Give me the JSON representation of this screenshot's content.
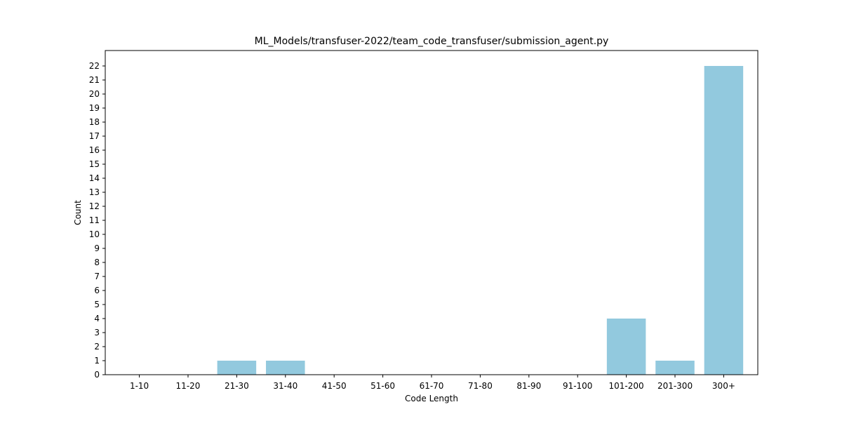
{
  "chart_data": {
    "type": "bar",
    "title": "ML_Models/transfuser-2022/team_code_transfuser/submission_agent.py",
    "xlabel": "Code Length",
    "ylabel": "Count",
    "categories": [
      "1-10",
      "11-20",
      "21-30",
      "31-40",
      "41-50",
      "51-60",
      "61-70",
      "71-80",
      "81-90",
      "91-100",
      "101-200",
      "201-300",
      "300+"
    ],
    "values": [
      0,
      0,
      1,
      1,
      0,
      0,
      0,
      0,
      0,
      0,
      4,
      1,
      22
    ],
    "ylim": [
      0,
      23.1
    ],
    "yticks": [
      0,
      1,
      2,
      3,
      4,
      5,
      6,
      7,
      8,
      9,
      10,
      11,
      12,
      13,
      14,
      15,
      16,
      17,
      18,
      19,
      20,
      21,
      22
    ],
    "grid": false,
    "legend": "none",
    "bar_color": "#92c9de"
  }
}
